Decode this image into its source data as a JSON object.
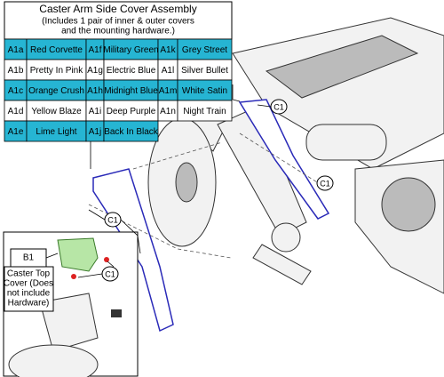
{
  "table": {
    "title": "Caster Arm Side Cover Assembly",
    "subtitle_lines": [
      "(Includes 1 pair of inner & outer covers",
      "and the mounting hardware.)"
    ],
    "rows": [
      [
        "A1a",
        "Red Corvette",
        "A1f",
        "Military Green",
        "A1k",
        "Grey Street"
      ],
      [
        "A1b",
        "Pretty In Pink",
        "A1g",
        "Electric Blue",
        "A1l",
        "Silver Bullet"
      ],
      [
        "A1c",
        "Orange Crush",
        "A1h",
        "Midnight Blue",
        "A1m",
        "White Satin"
      ],
      [
        "A1d",
        "Yellow Blaze",
        "A1i",
        "Deep Purple",
        "A1n",
        "Night Train"
      ],
      [
        "A1e",
        "Lime Light",
        "A1j",
        "Back In Black"
      ]
    ]
  },
  "callouts": [
    "C1",
    "C1",
    "C1",
    "C1"
  ],
  "inset": {
    "label": "B1",
    "description_lines": [
      "Caster Top",
      "Cover (Does",
      "not include",
      "Hardware)"
    ],
    "callout": "C1"
  }
}
